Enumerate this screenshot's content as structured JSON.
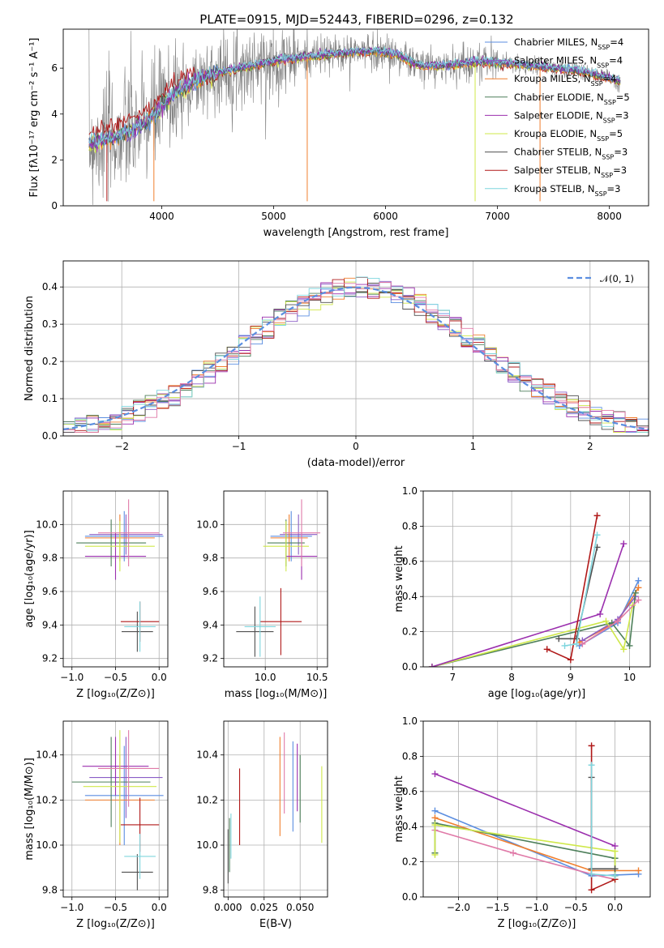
{
  "figure": {
    "title": "PLATE=0915, MJD=52443, FIBERID=0296, z=0.132"
  },
  "colors": {
    "chabrier_miles": "#5b8ee0",
    "salpeter_miles": "#8a5dc6",
    "kroupa_miles": "#f07f2e",
    "chabrier_elodie": "#4d7f5a",
    "salpeter_elodie": "#9b2fae",
    "kroupa_elodie": "#cfe84a",
    "chabrier_stelib": "#505050",
    "salpeter_stelib": "#b01818",
    "kroupa_stelib": "#7fd6de",
    "data": "#808080",
    "pink": "#e07aa8"
  },
  "chart_data": [
    {
      "id": "spectrum",
      "type": "line",
      "title": "PLATE=0915, MJD=52443, FIBERID=0296, z=0.132",
      "xlabel": "wavelength [Angstrom, rest frame]",
      "ylabel": "Flux [fλ10⁻¹⁷ erg cm⁻² s⁻¹ A⁻¹]",
      "xlim": [
        3120,
        8350
      ],
      "ylim": [
        0,
        7.7
      ],
      "xticks": [
        "4000",
        "5000",
        "6000",
        "7000",
        "8000"
      ],
      "yticks": [
        "0",
        "2",
        "4",
        "6"
      ],
      "grid": false,
      "legend_position": "top-right",
      "legend": [
        {
          "label": "Chabrier MILES, N",
          "sub": "SSP",
          "tail": "=4",
          "color_key": "chabrier_miles"
        },
        {
          "label": "Salpeter MILES, N",
          "sub": "SSP",
          "tail": "=4",
          "color_key": "salpeter_miles"
        },
        {
          "label": "Kroupa MILES, N",
          "sub": "SSP",
          "tail": "=4",
          "color_key": "kroupa_miles"
        },
        {
          "label": "Chabrier ELODIE, N",
          "sub": "SSP",
          "tail": "=5",
          "color_key": "chabrier_elodie"
        },
        {
          "label": "Salpeter ELODIE, N",
          "sub": "SSP",
          "tail": "=3",
          "color_key": "salpeter_elodie"
        },
        {
          "label": "Kroupa ELODIE, N",
          "sub": "SSP",
          "tail": "=5",
          "color_key": "kroupa_elodie"
        },
        {
          "label": "Chabrier STELIB, N",
          "sub": "SSP",
          "tail": "=3",
          "color_key": "chabrier_stelib"
        },
        {
          "label": "Salpeter STELIB, N",
          "sub": "SSP",
          "tail": "=3",
          "color_key": "salpeter_stelib"
        },
        {
          "label": "Kroupa STELIB, N",
          "sub": "SSP",
          "tail": "=3",
          "color_key": "kroupa_stelib"
        }
      ],
      "continuum": {
        "x": [
          3350,
          3450,
          3550,
          3650,
          3750,
          3850,
          3950,
          4050,
          4150,
          4300,
          4500,
          4700,
          4900,
          5100,
          5300,
          5500,
          5700,
          5900,
          6100,
          6300,
          6500,
          6700,
          6900,
          7100,
          7300,
          7500,
          7700,
          7900,
          8100
        ],
        "y": [
          2.7,
          2.8,
          2.95,
          3.1,
          3.3,
          3.6,
          4.0,
          4.6,
          5.0,
          5.4,
          5.8,
          6.0,
          6.2,
          6.4,
          6.5,
          6.6,
          6.7,
          6.75,
          6.6,
          6.1,
          6.1,
          6.2,
          6.3,
          6.2,
          6.1,
          6.0,
          5.9,
          5.7,
          5.4
        ]
      },
      "data_noise_x_range": [
        3350,
        7000
      ]
    },
    {
      "id": "residuals",
      "type": "line",
      "xlabel": "(data-model)/error",
      "ylabel": "Normed distribution",
      "xlim": [
        -2.5,
        2.5
      ],
      "ylim": [
        0,
        0.47
      ],
      "xticks": [
        "−2",
        "−1",
        "0",
        "1",
        "2"
      ],
      "yticks": [
        "0.0",
        "0.1",
        "0.2",
        "0.3",
        "0.4"
      ],
      "grid": true,
      "legend_position": "top-right",
      "legend": [
        {
          "label": "𝒩(0, 1)",
          "color_key": "chabrier_miles",
          "style": "dashed"
        }
      ],
      "gaussian": {
        "mu": 0,
        "sigma": 1
      },
      "hist_bin_width": 0.1
    },
    {
      "id": "age-vs-Z",
      "type": "scatter",
      "xlabel": "Z [log₁₀(Z/Z⊙)]",
      "ylabel": "age  [log₁₀(age/yr)]",
      "xlim": [
        -1.1,
        0.1
      ],
      "ylim": [
        9.15,
        10.2
      ],
      "xticks": [
        "−1.0",
        "−0.5",
        "0.0"
      ],
      "yticks": [
        "9.2",
        "9.4",
        "9.6",
        "9.8",
        "10.0"
      ],
      "grid": true,
      "errorbars": [
        {
          "x": -0.4,
          "xerr": 0.45,
          "y": 9.93,
          "yerr": 0.15,
          "color_key": "chabrier_miles"
        },
        {
          "x": -0.38,
          "xerr": 0.42,
          "y": 9.94,
          "yerr": 0.12,
          "color_key": "salpeter_miles"
        },
        {
          "x": -0.45,
          "xerr": 0.4,
          "y": 9.92,
          "yerr": 0.14,
          "color_key": "kroupa_miles"
        },
        {
          "x": -0.55,
          "xerr": 0.4,
          "y": 9.89,
          "yerr": 0.14,
          "color_key": "chabrier_elodie"
        },
        {
          "x": -0.5,
          "xerr": 0.35,
          "y": 9.81,
          "yerr": 0.14,
          "color_key": "salpeter_elodie"
        },
        {
          "x": -0.45,
          "xerr": 0.4,
          "y": 9.87,
          "yerr": 0.15,
          "color_key": "kroupa_elodie"
        },
        {
          "x": -0.25,
          "xerr": 0.18,
          "y": 9.36,
          "yerr": 0.12,
          "color_key": "chabrier_stelib"
        },
        {
          "x": -0.22,
          "xerr": 0.22,
          "y": 9.42,
          "yerr": 0.12,
          "color_key": "salpeter_stelib"
        },
        {
          "x": -0.22,
          "xerr": 0.18,
          "y": 9.39,
          "yerr": 0.15,
          "color_key": "kroupa_stelib"
        },
        {
          "x": -0.35,
          "xerr": 0.35,
          "y": 9.95,
          "yerr": 0.2,
          "color_key": "pink"
        }
      ]
    },
    {
      "id": "age-vs-mass",
      "type": "scatter",
      "xlabel": "mass [log₁₀(M/M⊙)]",
      "ylabel": "",
      "xlim": [
        9.6,
        10.6
      ],
      "ylim": [
        9.15,
        10.2
      ],
      "xticks": [
        "10.0",
        "10.5"
      ],
      "yticks": [
        "9.2",
        "9.4",
        "9.6",
        "9.8",
        "10.0"
      ],
      "grid": true,
      "errorbars": [
        {
          "x": 10.25,
          "xerr": 0.2,
          "y": 9.93,
          "yerr": 0.15,
          "color_key": "chabrier_miles"
        },
        {
          "x": 10.32,
          "xerr": 0.18,
          "y": 9.94,
          "yerr": 0.12,
          "color_key": "salpeter_miles"
        },
        {
          "x": 10.23,
          "xerr": 0.18,
          "y": 9.92,
          "yerr": 0.14,
          "color_key": "kroupa_miles"
        },
        {
          "x": 10.2,
          "xerr": 0.18,
          "y": 9.89,
          "yerr": 0.14,
          "color_key": "chabrier_elodie"
        },
        {
          "x": 10.35,
          "xerr": 0.15,
          "y": 9.81,
          "yerr": 0.14,
          "color_key": "salpeter_elodie"
        },
        {
          "x": 10.2,
          "xerr": 0.22,
          "y": 9.87,
          "yerr": 0.15,
          "color_key": "kroupa_elodie"
        },
        {
          "x": 9.9,
          "xerr": 0.18,
          "y": 9.36,
          "yerr": 0.15,
          "color_key": "chabrier_stelib"
        },
        {
          "x": 10.15,
          "xerr": 0.2,
          "y": 9.42,
          "yerr": 0.2,
          "color_key": "salpeter_stelib"
        },
        {
          "x": 9.95,
          "xerr": 0.15,
          "y": 9.39,
          "yerr": 0.18,
          "color_key": "kroupa_stelib"
        },
        {
          "x": 10.35,
          "xerr": 0.18,
          "y": 9.95,
          "yerr": 0.2,
          "color_key": "pink"
        }
      ]
    },
    {
      "id": "weight-vs-age",
      "type": "line",
      "xlabel": "age  [log₁₀(age/yr)]",
      "ylabel": "mass weight",
      "xlim": [
        6.5,
        10.35
      ],
      "ylim": [
        0,
        1
      ],
      "xticks": [
        "7",
        "8",
        "9",
        "10"
      ],
      "yticks": [
        "0.0",
        "0.2",
        "0.4",
        "0.6",
        "0.8",
        "1.0"
      ],
      "grid": true,
      "series": [
        {
          "color_key": "chabrier_miles",
          "x": [
            9.15,
            9.8,
            10.15
          ],
          "y": [
            0.12,
            0.25,
            0.49
          ]
        },
        {
          "color_key": "kroupa_miles",
          "x": [
            9.15,
            9.8,
            10.15
          ],
          "y": [
            0.14,
            0.26,
            0.45
          ]
        },
        {
          "color_key": "salpeter_miles",
          "x": [
            9.2,
            9.8,
            10.1
          ],
          "y": [
            0.15,
            0.27,
            0.4
          ]
        },
        {
          "color_key": "chabrier_elodie",
          "x": [
            6.65,
            9.7,
            10.0,
            10.1
          ],
          "y": [
            0.0,
            0.25,
            0.12,
            0.42
          ]
        },
        {
          "color_key": "kroupa_elodie",
          "x": [
            6.65,
            9.6,
            9.9,
            10.05
          ],
          "y": [
            0.0,
            0.26,
            0.1,
            0.35
          ]
        },
        {
          "color_key": "salpeter_elodie",
          "x": [
            6.65,
            9.5,
            9.9
          ],
          "y": [
            0.0,
            0.3,
            0.7
          ]
        },
        {
          "color_key": "chabrier_stelib",
          "x": [
            8.8,
            9.1,
            9.45
          ],
          "y": [
            0.16,
            0.16,
            0.68
          ]
        },
        {
          "color_key": "salpeter_stelib",
          "x": [
            8.6,
            9.0,
            9.45
          ],
          "y": [
            0.1,
            0.04,
            0.86
          ]
        },
        {
          "color_key": "kroupa_stelib",
          "x": [
            8.9,
            9.1,
            9.45
          ],
          "y": [
            0.12,
            0.13,
            0.75
          ]
        },
        {
          "color_key": "pink",
          "x": [
            9.2,
            9.8,
            10.15
          ],
          "y": [
            0.13,
            0.26,
            0.38
          ]
        }
      ]
    },
    {
      "id": "mass-vs-Z",
      "type": "scatter",
      "xlabel": "Z [log₁₀(Z/Z⊙)]",
      "ylabel": "mass [log₁₀(M/M⊙)]",
      "xlim": [
        -1.1,
        0.1
      ],
      "ylim": [
        9.77,
        10.55
      ],
      "xticks": [
        "−1.0",
        "−0.5",
        "0.0"
      ],
      "yticks": [
        "9.8",
        "10.0",
        "10.2",
        "10.4"
      ],
      "grid": true,
      "errorbars": [
        {
          "x": -0.4,
          "xerr": 0.45,
          "y": 10.22,
          "yerr": 0.22,
          "color_key": "chabrier_miles"
        },
        {
          "x": -0.38,
          "xerr": 0.42,
          "y": 10.3,
          "yerr": 0.18,
          "color_key": "salpeter_miles"
        },
        {
          "x": -0.45,
          "xerr": 0.4,
          "y": 10.2,
          "yerr": 0.2,
          "color_key": "kroupa_miles"
        },
        {
          "x": -0.55,
          "xerr": 0.45,
          "y": 10.28,
          "yerr": 0.2,
          "color_key": "chabrier_elodie"
        },
        {
          "x": -0.5,
          "xerr": 0.38,
          "y": 10.35,
          "yerr": 0.13,
          "color_key": "salpeter_elodie"
        },
        {
          "x": -0.45,
          "xerr": 0.42,
          "y": 10.26,
          "yerr": 0.25,
          "color_key": "kroupa_elodie"
        },
        {
          "x": -0.25,
          "xerr": 0.18,
          "y": 9.88,
          "yerr": 0.08,
          "color_key": "chabrier_stelib"
        },
        {
          "x": -0.22,
          "xerr": 0.22,
          "y": 10.09,
          "yerr": 0.12,
          "color_key": "salpeter_stelib"
        },
        {
          "x": -0.22,
          "xerr": 0.18,
          "y": 9.95,
          "yerr": 0.1,
          "color_key": "kroupa_stelib"
        },
        {
          "x": -0.35,
          "xerr": 0.35,
          "y": 10.34,
          "yerr": 0.17,
          "color_key": "pink"
        }
      ]
    },
    {
      "id": "mass-vs-EBV",
      "type": "scatter",
      "xlabel": "E(B-V)",
      "ylabel": "",
      "xlim": [
        -0.003,
        0.069
      ],
      "ylim": [
        9.77,
        10.55
      ],
      "xticks": [
        "0.000",
        "0.025",
        "0.050"
      ],
      "yticks": [
        "9.8",
        "10.0",
        "10.2",
        "10.4"
      ],
      "grid": true,
      "errorbars": [
        {
          "x": 0.0,
          "xerr": 0,
          "y": 9.95,
          "yerr": 0.12,
          "color_key": "chabrier_stelib"
        },
        {
          "x": 0.001,
          "xerr": 0,
          "y": 10.0,
          "yerr": 0.12,
          "color_key": "chabrier_elodie"
        },
        {
          "x": 0.002,
          "xerr": 0,
          "y": 10.04,
          "yerr": 0.1,
          "color_key": "kroupa_stelib"
        },
        {
          "x": 0.008,
          "xerr": 0,
          "y": 10.17,
          "yerr": 0.17,
          "color_key": "salpeter_stelib"
        },
        {
          "x": 0.036,
          "xerr": 0,
          "y": 10.26,
          "yerr": 0.22,
          "color_key": "kroupa_miles"
        },
        {
          "x": 0.039,
          "xerr": 0,
          "y": 10.32,
          "yerr": 0.18,
          "color_key": "pink"
        },
        {
          "x": 0.045,
          "xerr": 0,
          "y": 10.26,
          "yerr": 0.2,
          "color_key": "chabrier_miles"
        },
        {
          "x": 0.048,
          "xerr": 0,
          "y": 10.3,
          "yerr": 0.15,
          "color_key": "salpeter_elodie"
        },
        {
          "x": 0.05,
          "xerr": 0,
          "y": 10.25,
          "yerr": 0.15,
          "color_key": "chabrier_elodie"
        },
        {
          "x": 0.065,
          "xerr": 0,
          "y": 10.18,
          "yerr": 0.17,
          "color_key": "kroupa_elodie"
        }
      ]
    },
    {
      "id": "weight-vs-Z",
      "type": "line",
      "xlabel": "Z [log₁₀(Z/Z⊙)]",
      "ylabel": "mass weight",
      "xlim": [
        -2.45,
        0.45
      ],
      "ylim": [
        0,
        1
      ],
      "xticks": [
        "−2.0",
        "−1.5",
        "−1.0",
        "−0.5",
        "0.0"
      ],
      "yticks": [
        "0.0",
        "0.2",
        "0.4",
        "0.6",
        "0.8",
        "1.0"
      ],
      "grid": true,
      "series": [
        {
          "color_key": "chabrier_miles",
          "x": [
            -2.3,
            -0.3,
            0.3
          ],
          "y": [
            0.49,
            0.12,
            0.13
          ]
        },
        {
          "color_key": "kroupa_miles",
          "x": [
            -2.3,
            -0.3,
            0.3
          ],
          "y": [
            0.45,
            0.15,
            0.15
          ]
        },
        {
          "color_key": "pink",
          "x": [
            -2.3,
            -1.3,
            -0.3,
            0.0
          ],
          "y": [
            0.38,
            0.25,
            0.13,
            0.1
          ]
        },
        {
          "color_key": "chabrier_elodie",
          "x": [
            -2.3,
            -2.3,
            0.0,
            0.0
          ],
          "y": [
            0.25,
            0.42,
            0.22,
            0.12
          ]
        },
        {
          "color_key": "kroupa_elodie",
          "x": [
            -2.3,
            -2.3,
            0.0,
            0.0
          ],
          "y": [
            0.24,
            0.41,
            0.26,
            0.1
          ]
        },
        {
          "color_key": "salpeter_elodie",
          "x": [
            -2.3,
            0.0
          ],
          "y": [
            0.7,
            0.29
          ]
        },
        {
          "color_key": "chabrier_stelib",
          "x": [
            -0.3,
            -0.3,
            0.0
          ],
          "y": [
            0.68,
            0.16,
            0.16
          ]
        },
        {
          "color_key": "salpeter_stelib",
          "x": [
            -0.3,
            -0.3,
            0.0
          ],
          "y": [
            0.86,
            0.04,
            0.1
          ]
        },
        {
          "color_key": "kroupa_stelib",
          "x": [
            -0.3,
            -0.3,
            0.0
          ],
          "y": [
            0.75,
            0.13,
            0.12
          ]
        }
      ]
    }
  ]
}
